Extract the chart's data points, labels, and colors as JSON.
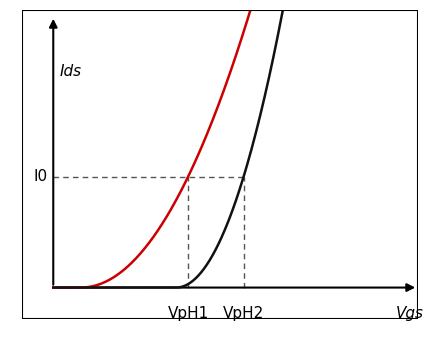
{
  "background_color": "#ffffff",
  "border_color": "#000000",
  "axis_color": "#000000",
  "ids_label": "Ids",
  "vgs_label": "Vgs",
  "i0_label": "I0",
  "vph1_label": "VpH1",
  "vph2_label": "VpH2",
  "curve1_color": "#cc0000",
  "curve2_color": "#111111",
  "dashed_color": "#555555",
  "VpH1": 4.2,
  "VpH2": 5.6,
  "I0": 0.42,
  "xmin": 0.0,
  "xmax": 10.0,
  "ymin": 0.0,
  "ymax": 1.05
}
